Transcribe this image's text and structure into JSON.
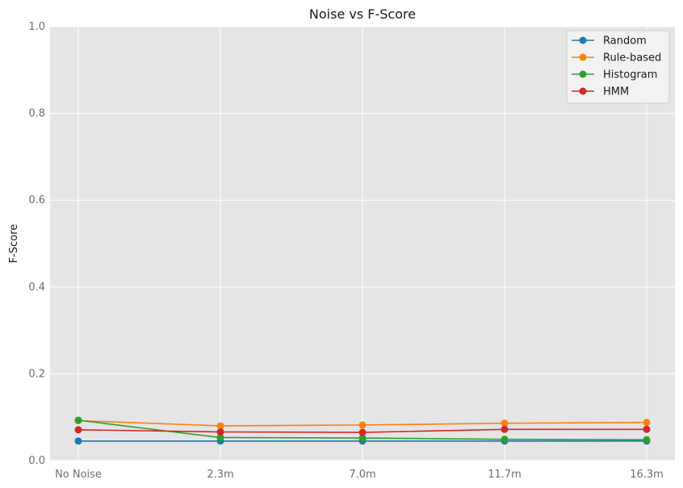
{
  "chart_data": {
    "type": "line",
    "title": "Noise vs F-Score",
    "xlabel": "",
    "ylabel": "F-Score",
    "categories": [
      "No Noise",
      "2.3m",
      "7.0m",
      "11.7m",
      "16.3m"
    ],
    "ylim": [
      0,
      1.0
    ],
    "yticks": [
      0.0,
      0.2,
      0.4,
      0.6,
      0.8,
      1.0
    ],
    "grid": true,
    "legend_position": "top-right",
    "series": [
      {
        "name": "Random",
        "color": "#1f77b4",
        "values": [
          0.045,
          0.045,
          0.045,
          0.045,
          0.045
        ]
      },
      {
        "name": "Rule-based",
        "color": "#ff7f0e",
        "values": [
          0.092,
          0.08,
          0.082,
          0.086,
          0.088
        ]
      },
      {
        "name": "Histogram",
        "color": "#2ca02c",
        "values": [
          0.093,
          0.053,
          0.052,
          0.049,
          0.048
        ]
      },
      {
        "name": "HMM",
        "color": "#d62728",
        "values": [
          0.071,
          0.066,
          0.065,
          0.072,
          0.072
        ]
      }
    ]
  }
}
